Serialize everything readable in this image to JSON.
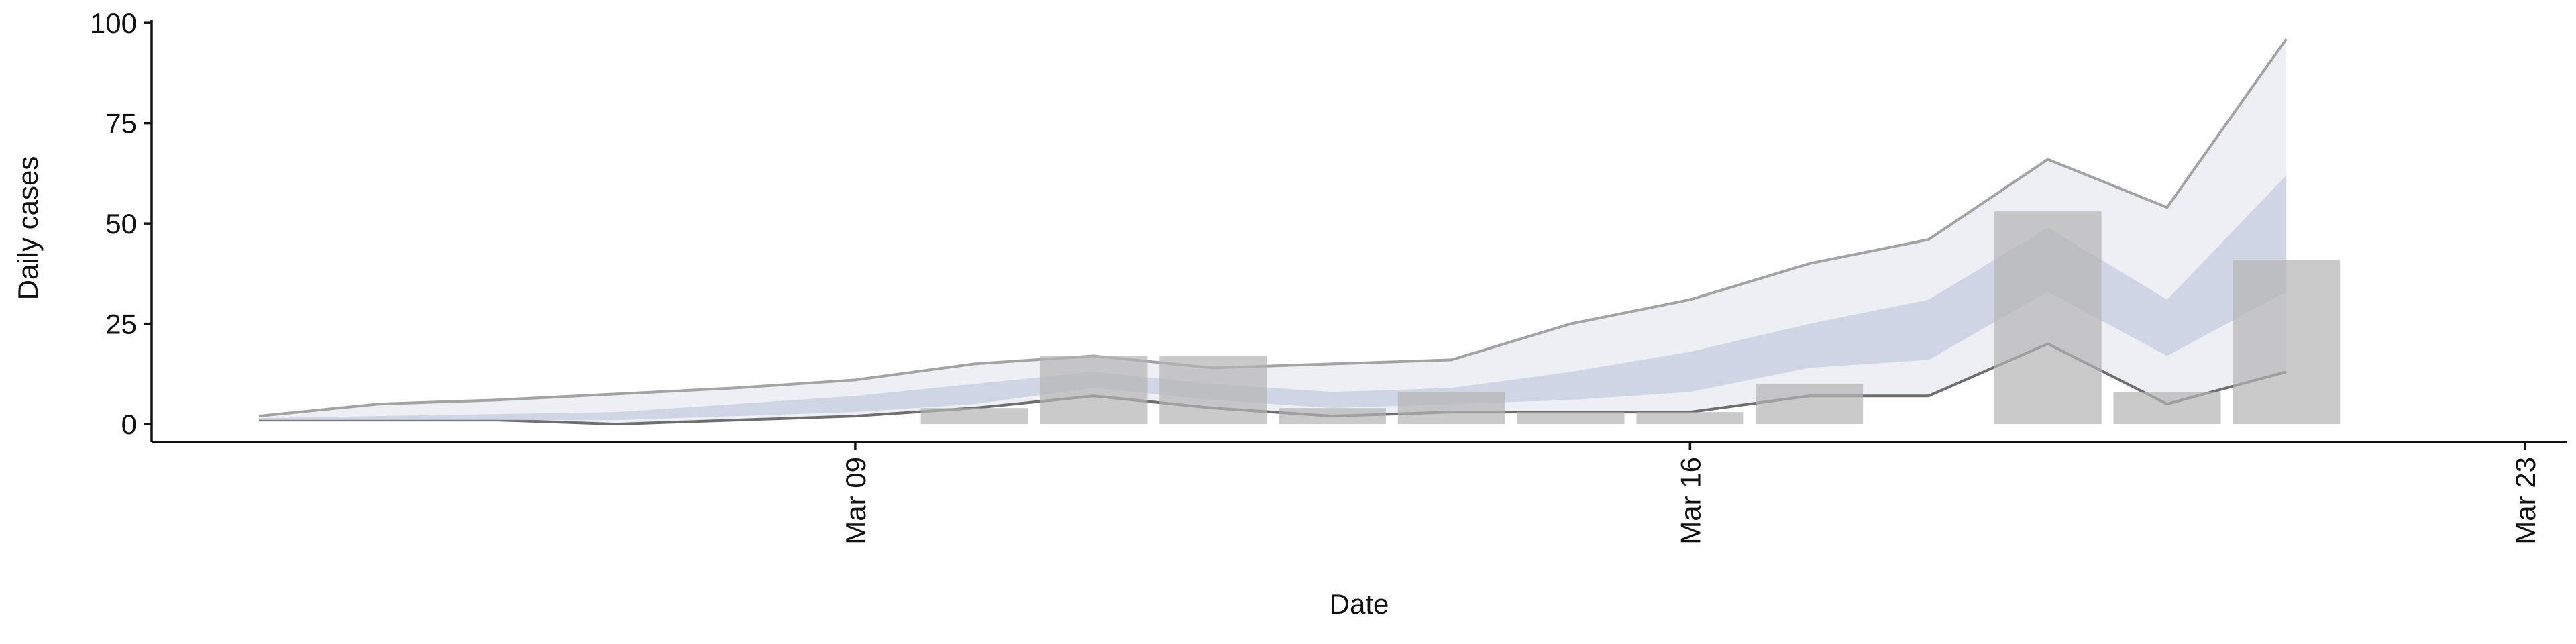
{
  "chart_data": {
    "type": "combo",
    "x": [
      4,
      5,
      6,
      7,
      8,
      9,
      10,
      11,
      12,
      13,
      14,
      15,
      16,
      17,
      18,
      19,
      20,
      21
    ],
    "xlim": [
      3.1,
      23.35
    ],
    "xticks": [
      {
        "value": 9,
        "label": "Mar 09"
      },
      {
        "value": 16,
        "label": "Mar 16"
      },
      {
        "value": 23,
        "label": "Mar 23"
      }
    ],
    "xlabel": "Date",
    "ylabel": "Daily cases",
    "ylim": [
      -4.5,
      100.7
    ],
    "yticks": [
      0,
      25,
      50,
      75,
      100
    ],
    "series": [
      {
        "type": "band",
        "color": "#eaecf2",
        "edge_colors": [
          "#a3a3a3",
          "#6e6e6e"
        ],
        "upper": [
          2,
          5,
          6,
          7.5,
          9,
          11,
          15,
          17,
          14,
          15,
          16,
          25,
          31,
          40,
          46,
          66,
          54,
          96
        ],
        "lower": [
          1,
          1,
          1,
          0,
          1,
          2,
          4,
          7,
          4,
          2,
          3,
          3,
          3,
          7,
          7,
          20,
          5,
          13
        ]
      },
      {
        "type": "band",
        "color": "#c9d0e1",
        "upper": [
          1.5,
          2,
          2.5,
          3,
          5,
          7,
          10,
          13,
          10,
          8,
          9,
          13,
          18,
          25,
          31,
          49,
          31,
          62
        ],
        "lower": [
          1,
          1,
          1,
          1,
          2,
          3,
          5,
          9,
          6,
          4,
          5,
          6,
          8,
          14,
          16,
          33,
          17,
          33
        ]
      },
      {
        "type": "bar",
        "color": "#b4b4b4",
        "values": [
          null,
          null,
          null,
          null,
          null,
          null,
          4,
          17,
          17,
          4,
          8,
          3,
          3,
          10,
          0,
          53,
          8,
          41
        ]
      }
    ]
  }
}
